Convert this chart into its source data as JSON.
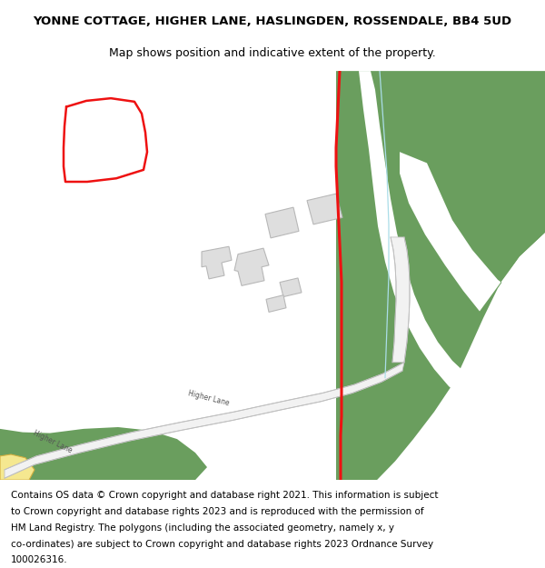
{
  "title_line1": "YONNE COTTAGE, HIGHER LANE, HASLINGDEN, ROSSENDALE, BB4 5UD",
  "title_line2": "Map shows position and indicative extent of the property.",
  "footer_lines": [
    "Contains OS data © Crown copyright and database right 2021. This information is subject",
    "to Crown copyright and database rights 2023 and is reproduced with the permission of",
    "HM Land Registry. The polygons (including the associated geometry, namely x, y",
    "co-ordinates) are subject to Crown copyright and database rights 2023 Ordnance Survey",
    "100026316."
  ],
  "bg_color": "#ffffff",
  "green_color": "#6a9e5e",
  "building_fill": "#dedede",
  "building_edge": "#b8b8b8",
  "red_color": "#ee1111",
  "light_blue": "#aadde8",
  "yellow_road": "#f5e890",
  "yellow_road_edge": "#d4b040",
  "title_fontsize": 9.5,
  "subtitle_fontsize": 9.0,
  "footer_fontsize": 7.5,
  "road_label_color": "#555555",
  "road_label_size": 5.5
}
